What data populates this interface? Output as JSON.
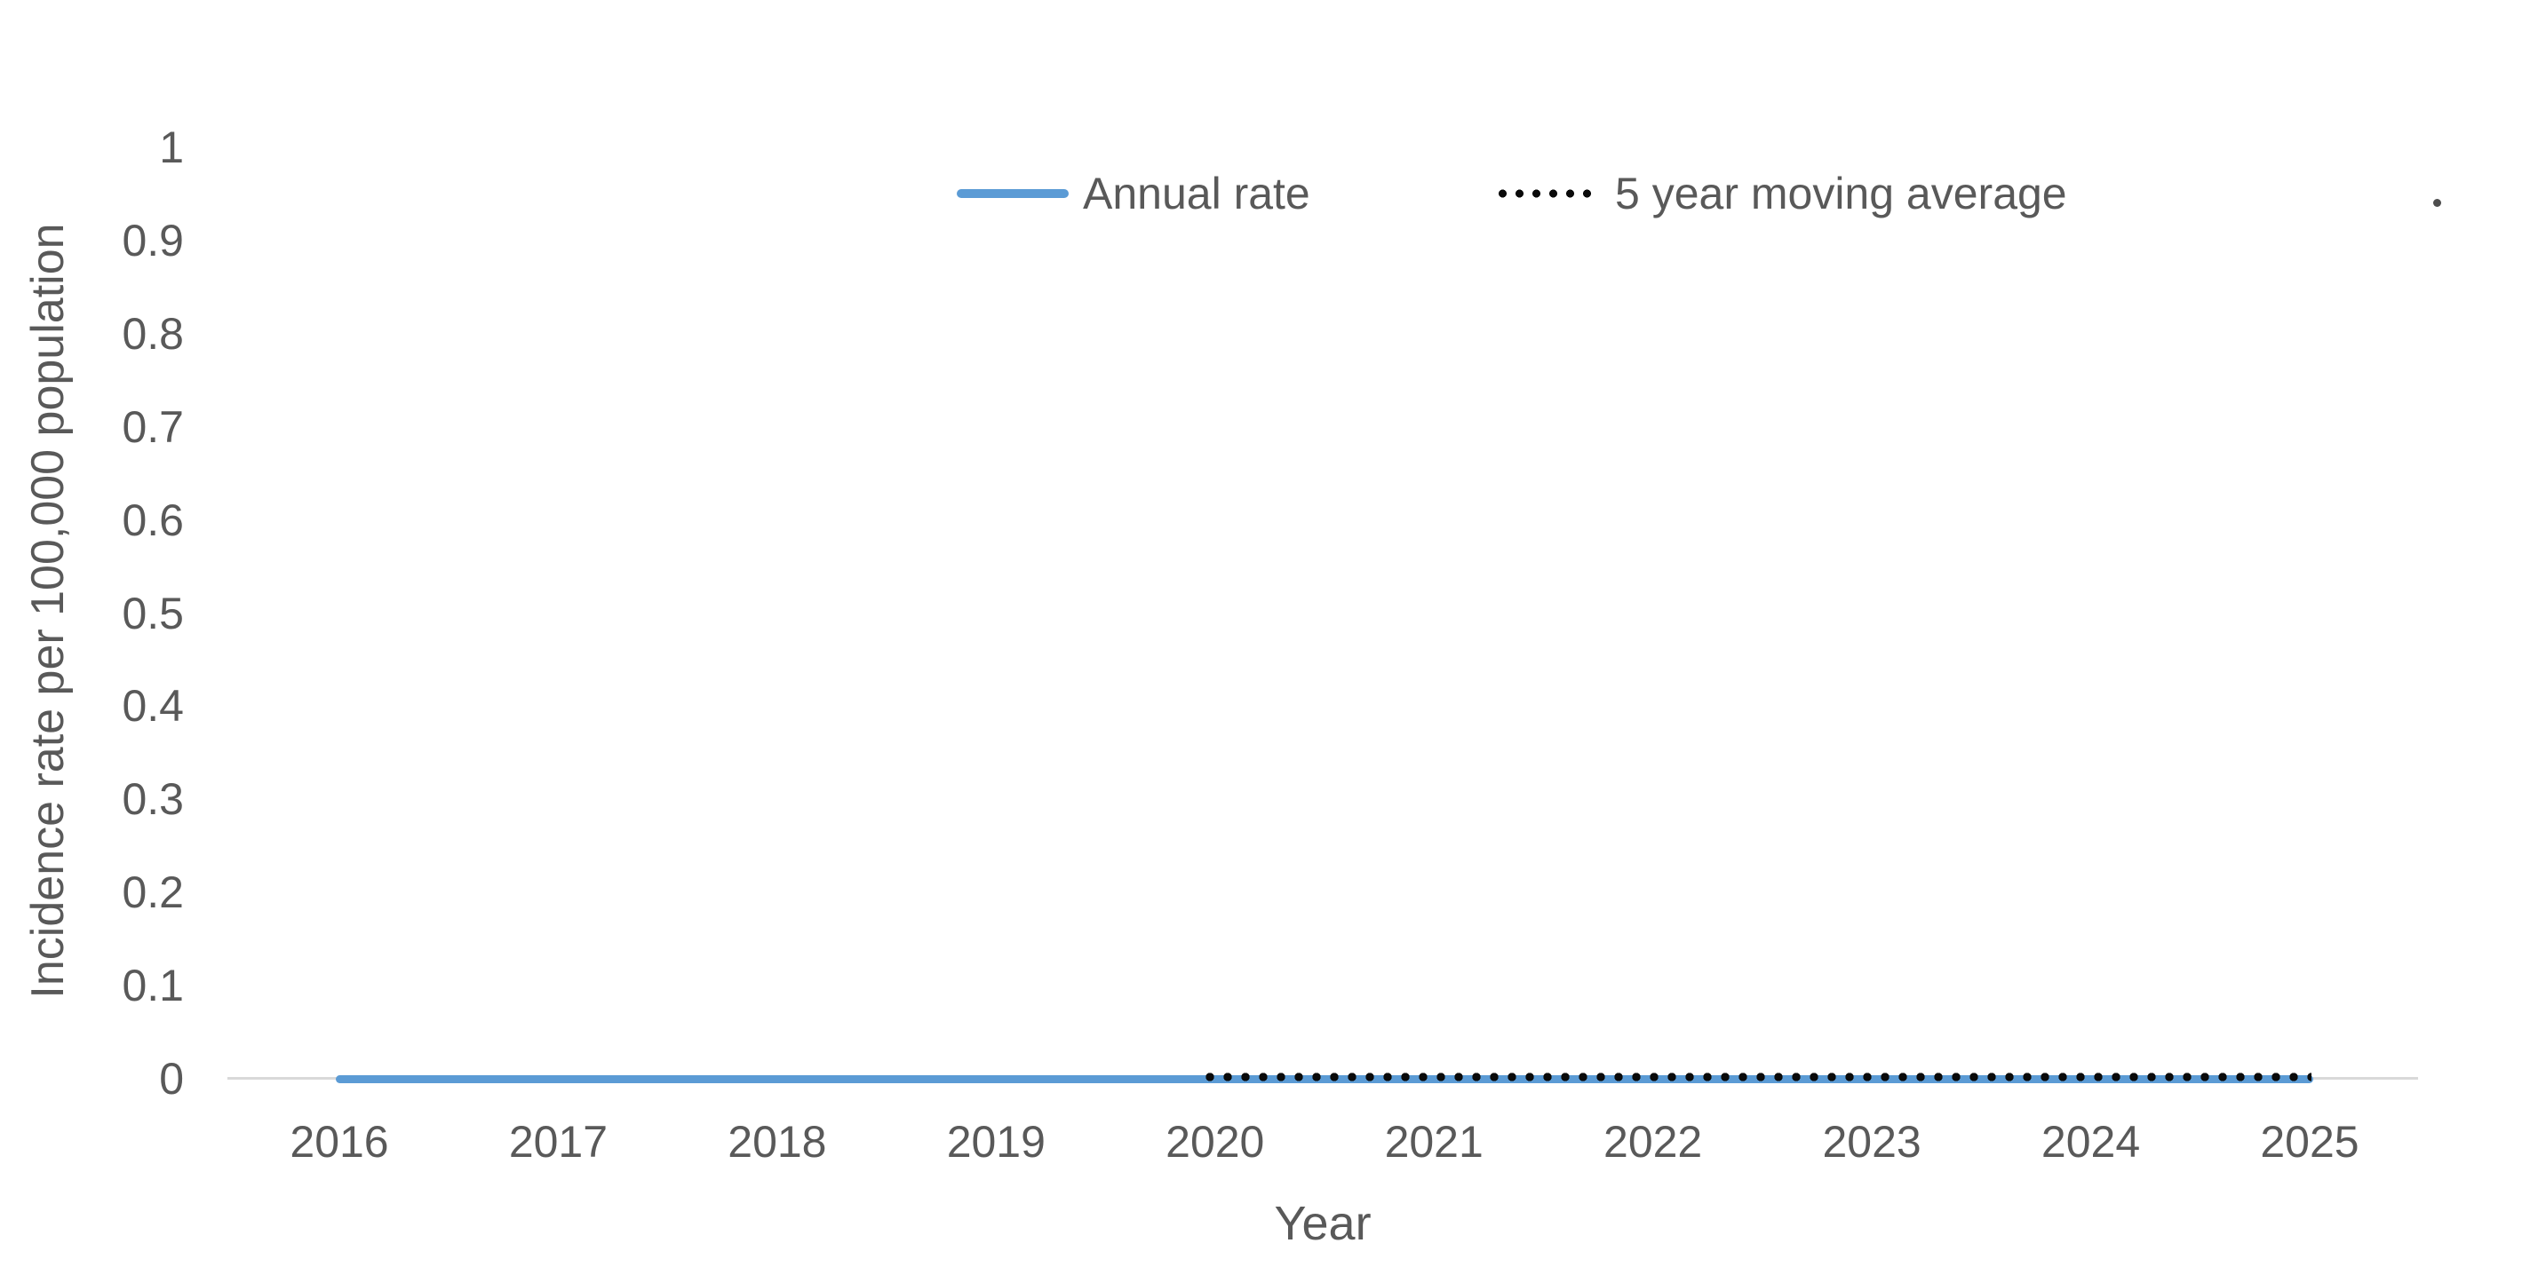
{
  "chart_data": {
    "type": "line",
    "x": [
      2016,
      2017,
      2018,
      2019,
      2020,
      2021,
      2022,
      2023,
      2024,
      2025
    ],
    "x_tick_labels": [
      "2016",
      "2017",
      "2018",
      "2019",
      "2020",
      "2021",
      "2022",
      "2023",
      "2024",
      "2025"
    ],
    "y_tick_labels": [
      "1",
      "0.9",
      "0.8",
      "0.7",
      "0.6",
      "0.5",
      "0.4",
      "0.3",
      "0.2",
      "0.1",
      "0"
    ],
    "series": [
      {
        "name": "Annual rate",
        "style": "solid",
        "color": "#5B9BD5",
        "values": [
          0,
          0,
          0,
          0,
          0,
          0,
          0,
          0,
          0,
          0
        ]
      },
      {
        "name": "5 year moving average",
        "style": "dotted",
        "color": "#0A0A0A",
        "values": [
          null,
          null,
          null,
          null,
          0,
          0,
          0,
          0,
          0,
          0
        ]
      }
    ],
    "title": "",
    "xlabel": "Year",
    "ylabel": "Incidence rate per 100,000 population",
    "ylim": [
      0,
      1
    ],
    "ytick_step": 0.1,
    "grid": false,
    "legend_position": "top"
  },
  "legend": {
    "items": [
      "Annual rate",
      "5 year moving average"
    ],
    "stray_dot_symbol": "."
  },
  "colors": {
    "series_blue": "#5B9BD5",
    "series_black": "#0A0A0A",
    "text_gray": "#595959",
    "axis_line": "#D9D9D9",
    "stray_dot": "#4D4D4D",
    "background": "#FFFFFF"
  }
}
